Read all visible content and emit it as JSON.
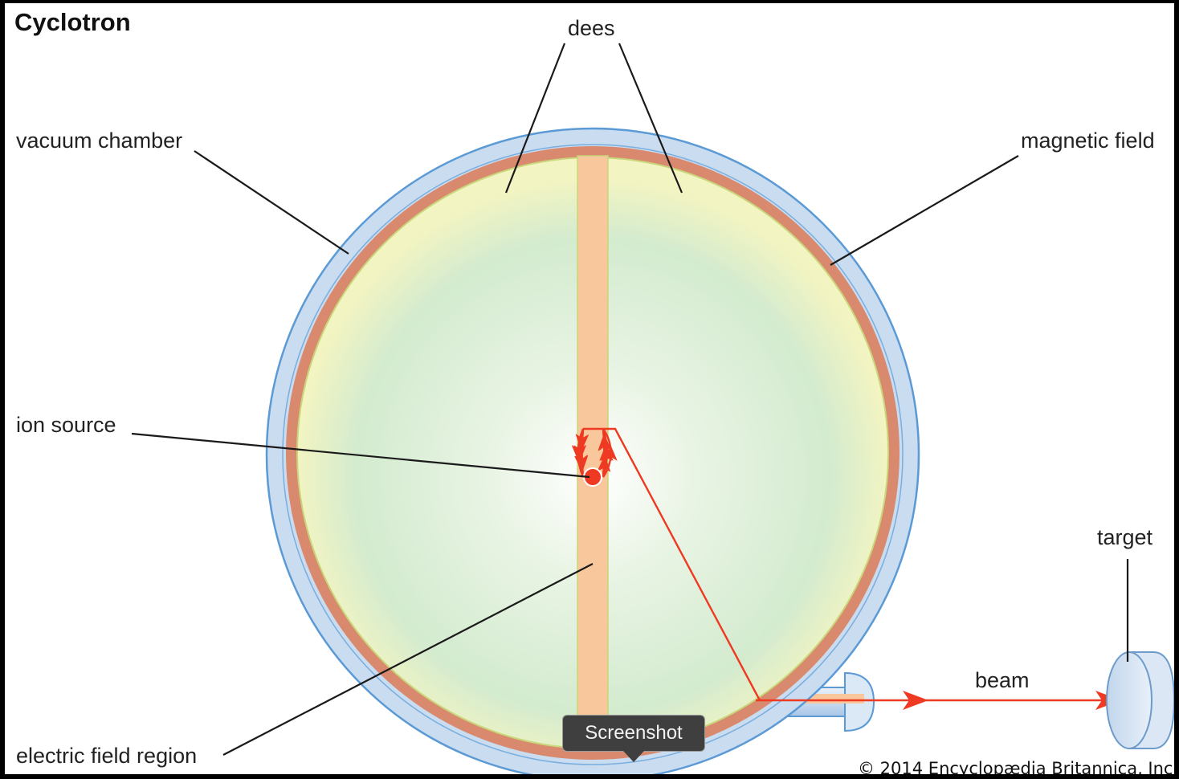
{
  "diagram": {
    "title": "Cyclotron",
    "labels": {
      "dees": "dees",
      "vacuum_chamber": "vacuum chamber",
      "magnetic_field": "magnetic field",
      "ion_source": "ion source",
      "electric_field_region": "electric field region",
      "target": "target",
      "beam": "beam"
    },
    "copyright": "© 2014 Encyclopædia Britannica, Inc."
  },
  "tooltip": {
    "label": "Screenshot"
  },
  "colors": {
    "chamber_blue": "#c9dcf0",
    "chamber_outline": "#5b9ad5",
    "magnet_rim": "#d98a6e",
    "dee_fill": "#f4f3c4",
    "gap_fill": "#f8c89c",
    "particle_path": "#ee3a22"
  }
}
